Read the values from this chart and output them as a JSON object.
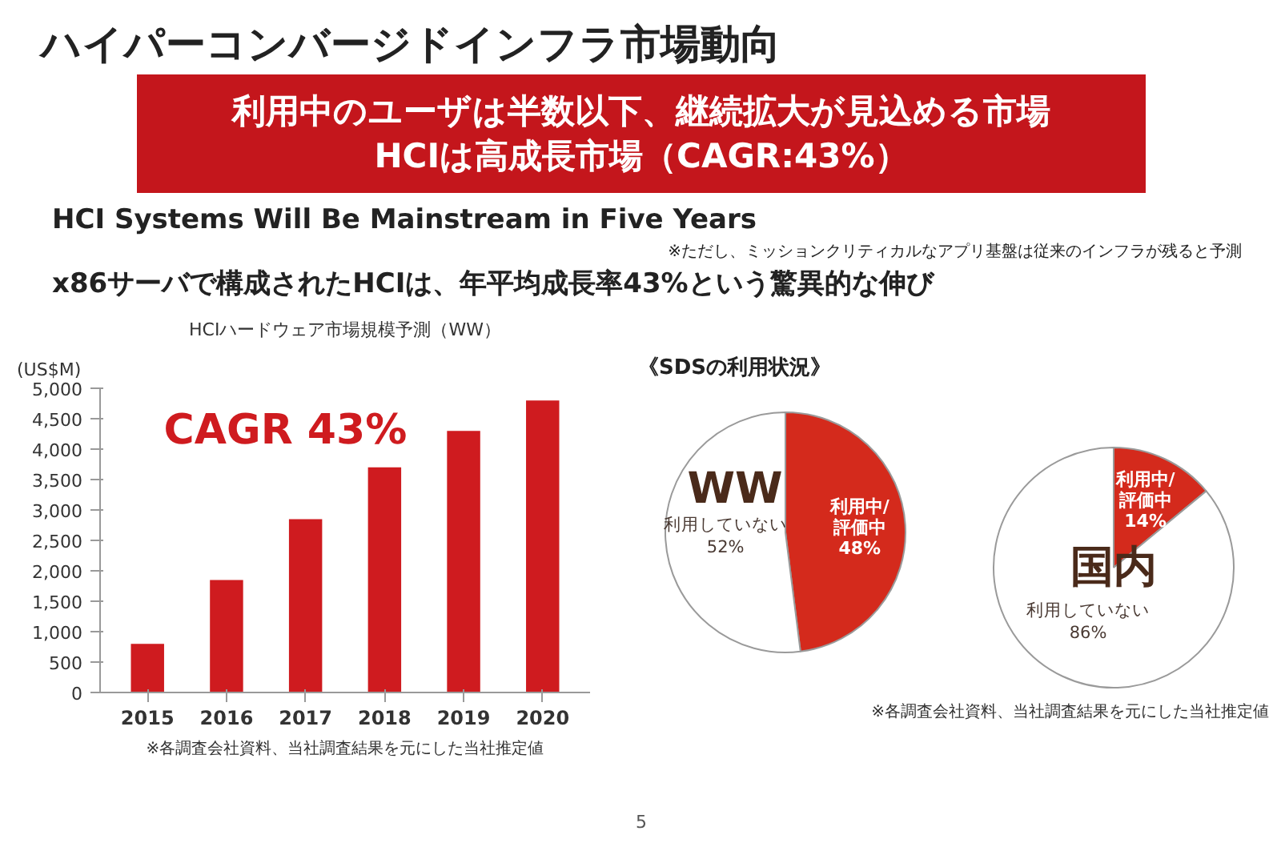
{
  "chart_data": [
    {
      "type": "other",
      "title": "ハイパーコンバージドインフラ市場動向",
      "subtitle": "利用中のユーザは半数以下、継続拡大が見込める市場\nHCIは高成長市場（CAGR:43%）",
      "annotations": [
        "HCI Systems Will Be Mainstream in Five Years",
        "※ただし、ミッションクリティカルなアプリ基盤は従来のインフラが残ると予測",
        "x86サーバで構成されたHCIは、年平均成長率43%という驚異的な伸び",
        "5"
      ]
    },
    {
      "type": "bar",
      "title": "HCIハードウェア市場規模予測（WW）",
      "ylabel": "(US$M)",
      "categories": [
        "2015",
        "2016",
        "2017",
        "2018",
        "2019",
        "2020"
      ],
      "values": [
        800,
        1850,
        2850,
        3700,
        4300,
        4800
      ],
      "color": "#cf1b1f",
      "ylim": [
        0,
        5000
      ],
      "yticks": [
        0,
        500,
        {
          "value": 1000,
          "label": "1,000"
        },
        {
          "value": 1500,
          "label": "1,500"
        },
        {
          "value": 2000,
          "label": "2,000"
        },
        {
          "value": 2500,
          "label": "2,500"
        },
        {
          "value": 3000,
          "label": "3,000"
        },
        {
          "value": 3500,
          "label": "3,500"
        },
        {
          "value": 4000,
          "label": "4,000"
        },
        {
          "value": 4500,
          "label": "4,500"
        },
        {
          "value": 5000,
          "label": "5,000"
        }
      ],
      "annotations": [
        "CAGR 43%",
        "※各調査会社資料、当社調査結果を元にした当社推定値"
      ]
    },
    {
      "type": "pie",
      "title": "《SDSの利用状況》",
      "subtitle": "WW",
      "categories": [
        "利用中/\n評価中",
        "利用していない"
      ],
      "values": [
        48,
        52
      ],
      "colors": [
        "#d42a1c",
        "#ffffff"
      ],
      "value_labels": [
        "48%",
        "52%"
      ]
    },
    {
      "type": "pie",
      "subtitle": "国内",
      "categories": [
        "利用中/\n評価中",
        "利用していない"
      ],
      "values": [
        14,
        86
      ],
      "colors": [
        "#d42a1c",
        "#ffffff"
      ],
      "value_labels": [
        "14%",
        "86%"
      ],
      "annotations": [
        "※各調査会社資料、当社調査結果を元にした当社推定値"
      ]
    }
  ]
}
